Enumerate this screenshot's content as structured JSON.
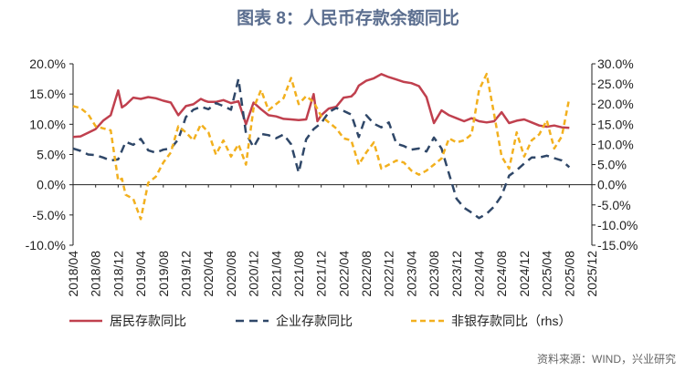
{
  "chart_data": {
    "type": "line",
    "title": "图表 8：人民币存款余额同比",
    "source": "资料来源：WIND，兴业研究",
    "x_ticks": [
      "2018/04",
      "2018/08",
      "2018/12",
      "2019/04",
      "2019/08",
      "2019/12",
      "2020/04",
      "2020/08",
      "2020/12",
      "2021/04",
      "2021/08",
      "2021/12",
      "2022/04",
      "2022/08",
      "2022/12",
      "2023/04",
      "2023/08",
      "2023/12",
      "2024/04",
      "2024/08",
      "2024/12",
      "2025/04",
      "2025/08",
      "2025/12"
    ],
    "left_axis": {
      "min": -10,
      "max": 20,
      "step": 5,
      "tick_labels": [
        "-10.0%",
        "-5.0%",
        "0.0%",
        "5.0%",
        "10.0%",
        "15.0%",
        "20.0%"
      ]
    },
    "right_axis": {
      "min": -15,
      "max": 30,
      "step": 5,
      "tick_labels": [
        "-15.0%",
        "-10.0%",
        "-5.0%",
        "0.0%",
        "5.0%",
        "10.0%",
        "15.0%",
        "20.0%",
        "25.0%",
        "30.0%"
      ]
    },
    "series": [
      {
        "name": "居民存款同比",
        "axis": "left",
        "color": "#c0404e",
        "style": "solid",
        "x": [
          0,
          2,
          4,
          6,
          8,
          10,
          12,
          13,
          14,
          16,
          18,
          20,
          22,
          24,
          26,
          28,
          30,
          32,
          34,
          35,
          36,
          38,
          40,
          42,
          44,
          46,
          48,
          50,
          52,
          54,
          56,
          58,
          60,
          62,
          64,
          65,
          66,
          68,
          70,
          72,
          74,
          75,
          76,
          78,
          80,
          82,
          84,
          86,
          88,
          90,
          92,
          94,
          96,
          98,
          100,
          102,
          104,
          106,
          108,
          110,
          112,
          114,
          116,
          118,
          120,
          122,
          124,
          126,
          128,
          130,
          132
        ],
        "values": [
          7.9,
          8.0,
          8.6,
          9.2,
          10.6,
          11.5,
          15.6,
          12.8,
          13.2,
          14.4,
          14.2,
          14.5,
          14.3,
          13.9,
          13.6,
          11.5,
          13.0,
          13.3,
          14.2,
          13.9,
          13.7,
          13.7,
          14.0,
          13.5,
          13.8,
          10.0,
          13.6,
          12.5,
          11.5,
          11.3,
          10.9,
          10.8,
          10.7,
          10.8,
          15.0,
          10.5,
          11.5,
          12.6,
          12.9,
          14.4,
          14.6,
          15.2,
          16.4,
          17.2,
          17.6,
          18.3,
          17.8,
          17.4,
          17.0,
          16.8,
          16.3,
          14.5,
          10.2,
          12.3,
          11.5,
          11.0,
          10.5,
          11.0,
          10.5,
          10.3,
          10.5,
          12.0,
          10.2,
          10.6,
          10.8,
          10.3,
          9.8,
          9.6,
          9.8,
          9.5,
          9.4
        ]
      },
      {
        "name": "企业存款同比",
        "axis": "left",
        "color": "#2f4768",
        "style": "dashed",
        "x": [
          0,
          2,
          4,
          6,
          8,
          10,
          12,
          14,
          16,
          18,
          20,
          22,
          24,
          26,
          28,
          30,
          32,
          34,
          36,
          38,
          40,
          42,
          44,
          46,
          48,
          50,
          52,
          54,
          56,
          58,
          60,
          62,
          64,
          66,
          68,
          70,
          72,
          74,
          76,
          78,
          80,
          82,
          84,
          86,
          88,
          90,
          92,
          94,
          96,
          98,
          100,
          102,
          104,
          106,
          108,
          110,
          112,
          114,
          116,
          118,
          120,
          122,
          124,
          126,
          128,
          130,
          132
        ],
        "values": [
          6.0,
          5.6,
          5.0,
          4.9,
          4.5,
          4.0,
          4.2,
          7.1,
          6.6,
          7.6,
          5.7,
          5.3,
          5.8,
          6.0,
          7.5,
          11.2,
          12.4,
          12.9,
          12.5,
          13.5,
          13.0,
          12.4,
          17.5,
          8.5,
          6.2,
          8.4,
          8.2,
          7.7,
          8.3,
          6.7,
          2.0,
          7.5,
          9.2,
          10.2,
          12.0,
          12.7,
          12.2,
          11.6,
          7.9,
          11.5,
          10.1,
          9.5,
          10.3,
          6.8,
          6.4,
          5.8,
          6.0,
          5.5,
          7.8,
          6.0,
          1.8,
          -2.3,
          -3.8,
          -4.6,
          -5.5,
          -4.8,
          -3.6,
          -1.8,
          1.5,
          2.4,
          3.5,
          4.5,
          4.5,
          4.8,
          4.4,
          4.0,
          2.9
        ]
      },
      {
        "name": "非银存款同比（rhs）",
        "axis": "right",
        "color": "#f2b01e",
        "style": "dashed",
        "x": [
          0,
          2,
          4,
          6,
          8,
          10,
          12,
          13,
          14,
          16,
          18,
          20,
          22,
          24,
          26,
          28,
          30,
          32,
          34,
          36,
          38,
          40,
          42,
          44,
          46,
          48,
          50,
          52,
          54,
          56,
          58,
          60,
          62,
          64,
          66,
          68,
          70,
          72,
          74,
          76,
          78,
          80,
          82,
          84,
          86,
          88,
          90,
          92,
          94,
          96,
          98,
          100,
          102,
          104,
          106,
          108,
          110,
          112,
          114,
          116,
          118,
          120,
          122,
          124,
          126,
          128,
          130,
          132
        ],
        "values": [
          19.5,
          19.0,
          17.5,
          14.5,
          14.0,
          13.5,
          1.0,
          1.5,
          -2.5,
          -3.5,
          -8.5,
          0.5,
          2.0,
          5.5,
          8.0,
          14.5,
          13.0,
          11.0,
          15.0,
          13.0,
          7.5,
          11.0,
          7.0,
          10.0,
          5.0,
          19.0,
          23.5,
          18.5,
          20.0,
          21.5,
          26.5,
          20.0,
          22.0,
          20.5,
          17.0,
          15.5,
          14.0,
          11.5,
          11.0,
          5.0,
          8.0,
          10.5,
          4.0,
          5.0,
          6.0,
          5.5,
          3.5,
          2.5,
          3.5,
          5.0,
          6.5,
          11.5,
          10.5,
          11.0,
          12.5,
          23.5,
          27.5,
          17.5,
          7.0,
          4.0,
          13.0,
          7.0,
          11.0,
          12.5,
          16.0,
          9.0,
          12.0,
          21.5
        ]
      }
    ],
    "legend_position": "bottom",
    "grid": false
  }
}
